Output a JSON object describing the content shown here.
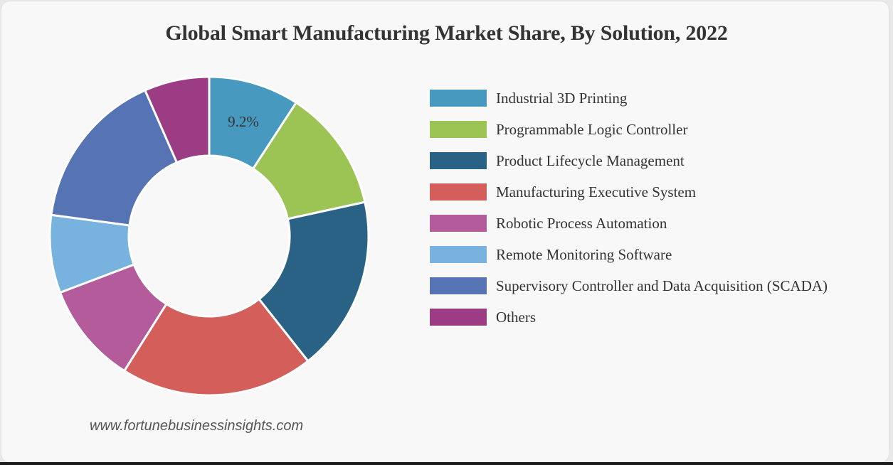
{
  "chart_data": {
    "type": "pie",
    "subtype": "donut",
    "title": "Global Smart Manufacturing Market Share, By Solution, 2022",
    "categories": [
      "Industrial 3D Printing",
      "Programmable Logic Controller",
      "Product Lifecycle Management",
      "Manufacturing Executive System",
      "Robotic Process Automation",
      "Remote Monitoring Software",
      "Supervisory Controller and Data Acquisition (SCADA)",
      "Others"
    ],
    "values": [
      9.2,
      12.4,
      17.8,
      19.6,
      10.3,
      7.9,
      16.3,
      6.6
    ],
    "colors": [
      "#4899bf",
      "#9bc455",
      "#2a6285",
      "#d45f5a",
      "#b35b9b",
      "#78b2de",
      "#5674b3",
      "#9b3c85"
    ],
    "unit": "%",
    "data_labels": [
      {
        "category": "Industrial 3D Printing",
        "text": "9.2%"
      }
    ],
    "legend_position": "right",
    "start_angle": "12 o'clock, clockwise"
  },
  "title": "Global Smart Manufacturing Market Share, By Solution, 2022",
  "legend": {
    "items": [
      {
        "label": "Industrial 3D Printing",
        "color": "#4899bf"
      },
      {
        "label": "Programmable Logic Controller",
        "color": "#9bc455"
      },
      {
        "label": "Product Lifecycle Management",
        "color": "#2a6285"
      },
      {
        "label": "Manufacturing Executive System",
        "color": "#d45f5a"
      },
      {
        "label": "Robotic Process Automation",
        "color": "#b35b9b"
      },
      {
        "label": "Remote Monitoring Software",
        "color": "#78b2de"
      },
      {
        "label": "Supervisory Controller and Data Acquisition (SCADA)",
        "color": "#5674b3"
      },
      {
        "label": "Others",
        "color": "#9b3c85"
      }
    ]
  },
  "data_label": "9.2%",
  "watermark": "www.fortunebusinessinsights.com"
}
